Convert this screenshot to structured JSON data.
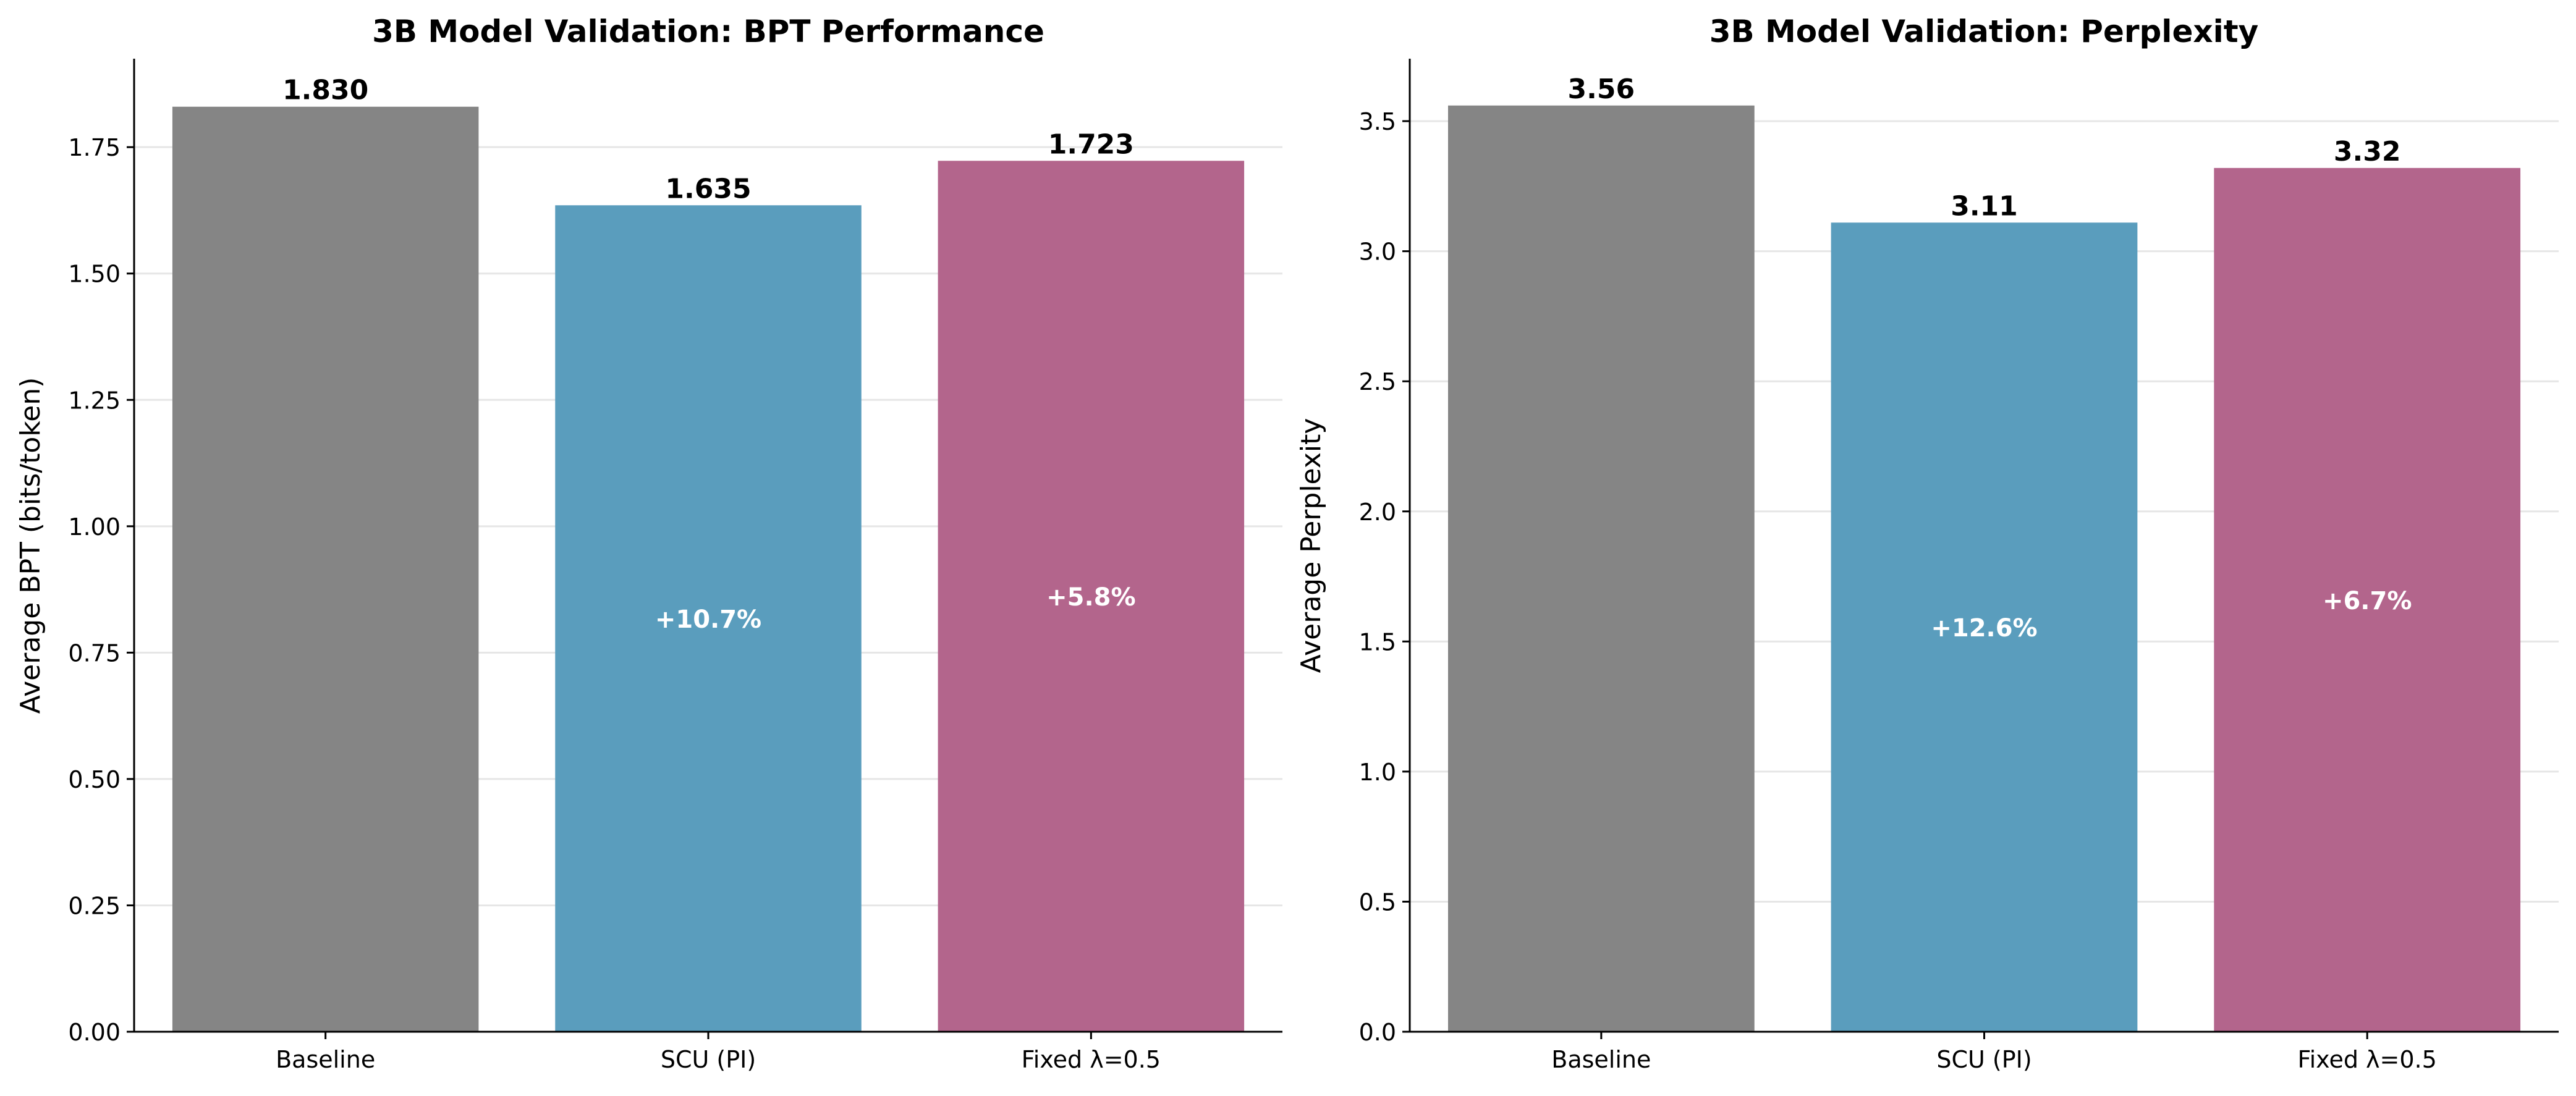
{
  "chart_data": [
    {
      "type": "bar",
      "title": "3B Model Validation: BPT Performance",
      "xlabel": "",
      "ylabel": "Average BPT (bits/token)",
      "categories": [
        "Baseline",
        "SCU (PI)",
        "Fixed λ=0.5"
      ],
      "values": [
        1.83,
        1.635,
        1.723
      ],
      "value_labels": [
        "1.830",
        "1.635",
        "1.723"
      ],
      "improvement_labels": [
        "",
        "+10.7%",
        "+5.8%"
      ],
      "colors": [
        "#858585",
        "#5a9dbd",
        "#b3658c"
      ],
      "ylim": [
        0,
        1.925
      ],
      "yticks": [
        0.0,
        0.25,
        0.5,
        0.75,
        1.0,
        1.25,
        1.5,
        1.75
      ],
      "ytick_labels": [
        "0.00",
        "0.25",
        "0.50",
        "0.75",
        "1.00",
        "1.25",
        "1.50",
        "1.75"
      ],
      "grid": true
    },
    {
      "type": "bar",
      "title": "3B Model Validation: Perplexity",
      "xlabel": "",
      "ylabel": "Average Perplexity",
      "categories": [
        "Baseline",
        "SCU (PI)",
        "Fixed λ=0.5"
      ],
      "values": [
        3.56,
        3.11,
        3.32
      ],
      "value_labels": [
        "3.56",
        "3.11",
        "3.32"
      ],
      "improvement_labels": [
        "",
        "+12.6%",
        "+6.7%"
      ],
      "colors": [
        "#858585",
        "#5a9dbd",
        "#b3658c"
      ],
      "ylim": [
        0,
        3.74
      ],
      "yticks": [
        0.0,
        0.5,
        1.0,
        1.5,
        2.0,
        2.5,
        3.0,
        3.5
      ],
      "ytick_labels": [
        "0.0",
        "0.5",
        "1.0",
        "1.5",
        "2.0",
        "2.5",
        "3.0",
        "3.5"
      ],
      "grid": true
    }
  ]
}
